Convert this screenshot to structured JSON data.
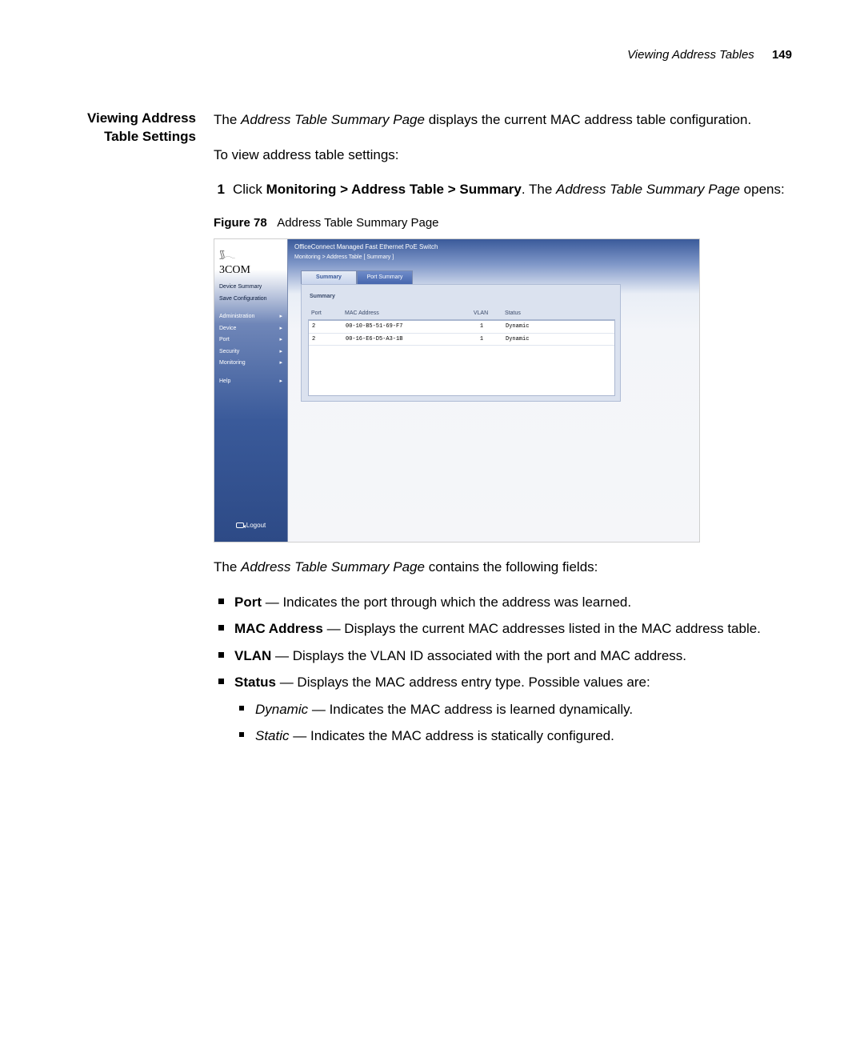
{
  "running_head": {
    "title": "Viewing Address Tables",
    "page": "149"
  },
  "section_title_l1": "Viewing Address",
  "section_title_l2": "Table Settings",
  "intro_pre": "The ",
  "intro_em": "Address Table Summary Page",
  "intro_post": " displays the current MAC address table configuration.",
  "howto_lead": "To view address table settings:",
  "step1_num": "1",
  "step1_a": "Click ",
  "step1_b": "Monitoring > Address Table > Summary",
  "step1_c": ". The ",
  "step1_d": "Address Table Summary Page",
  "step1_e": " opens:",
  "fig": {
    "label": "Figure 78",
    "caption": "Address Table Summary Page"
  },
  "shot": {
    "logo_swirl": "⟆⟆ 𓂃",
    "logo": "3COM",
    "title": "OfficeConnect Managed Fast Ethernet PoE Switch",
    "crumb": "Monitoring > Address Table [ Summary ]",
    "nav_device_summary": "Device Summary",
    "nav_save_config": "Save Configuration",
    "nav_admin": "Administration",
    "nav_device": "Device",
    "nav_port": "Port",
    "nav_security": "Security",
    "nav_monitoring": "Monitoring",
    "nav_help": "Help",
    "logout": "Logout",
    "tabs": {
      "summary": "Summary",
      "port_summary": "Port Summary"
    },
    "panel_title": "Summary",
    "columns": {
      "port": "Port",
      "mac": "MAC Address",
      "vlan": "VLAN",
      "status": "Status"
    },
    "rows": [
      {
        "port": "2",
        "mac": "00-10-B5-51-69-F7",
        "vlan": "1",
        "status": "Dynamic"
      },
      {
        "port": "2",
        "mac": "00-16-E6-D5-A3-1B",
        "vlan": "1",
        "status": "Dynamic"
      }
    ]
  },
  "after_fig_pre": "The ",
  "after_fig_em": "Address Table Summary Page",
  "after_fig_post": " contains the following fields:",
  "fields": {
    "port": {
      "name": "Port",
      "desc": " — Indicates the port through which the address was learned."
    },
    "mac": {
      "name": "MAC Address",
      "desc": " — Displays the current MAC addresses listed in the MAC address table."
    },
    "vlan": {
      "name": "VLAN",
      "desc": " — Displays the VLAN ID associated with the port and MAC address."
    },
    "status": {
      "name": "Status",
      "desc": " — Displays the MAC address entry type. Possible values are:"
    },
    "dynamic": {
      "name": "Dynamic",
      "desc": " — Indicates the MAC address is learned dynamically."
    },
    "static": {
      "name": "Static",
      "desc": " — Indicates the MAC address is statically configured."
    }
  }
}
